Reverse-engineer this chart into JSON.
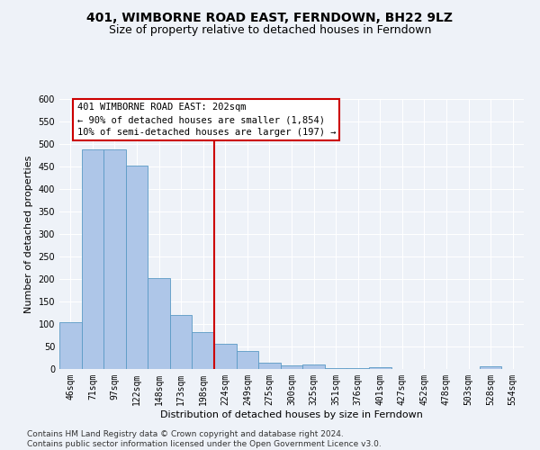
{
  "title": "401, WIMBORNE ROAD EAST, FERNDOWN, BH22 9LZ",
  "subtitle": "Size of property relative to detached houses in Ferndown",
  "xlabel": "Distribution of detached houses by size in Ferndown",
  "ylabel": "Number of detached properties",
  "categories": [
    "46sqm",
    "71sqm",
    "97sqm",
    "122sqm",
    "148sqm",
    "173sqm",
    "198sqm",
    "224sqm",
    "249sqm",
    "275sqm",
    "300sqm",
    "325sqm",
    "351sqm",
    "376sqm",
    "401sqm",
    "427sqm",
    "452sqm",
    "478sqm",
    "503sqm",
    "528sqm",
    "554sqm"
  ],
  "values": [
    105,
    488,
    488,
    453,
    202,
    120,
    83,
    56,
    40,
    15,
    8,
    10,
    2,
    2,
    5,
    0,
    0,
    0,
    0,
    6,
    0
  ],
  "bar_color": "#aec6e8",
  "bar_edge_color": "#5a9ac5",
  "vline_color": "#cc0000",
  "vline_x": 6.5,
  "annotation_text": "401 WIMBORNE ROAD EAST: 202sqm\n← 90% of detached houses are smaller (1,854)\n10% of semi-detached houses are larger (197) →",
  "annotation_box_color": "#cc0000",
  "ylim": [
    0,
    600
  ],
  "yticks": [
    0,
    50,
    100,
    150,
    200,
    250,
    300,
    350,
    400,
    450,
    500,
    550,
    600
  ],
  "footer_line1": "Contains HM Land Registry data © Crown copyright and database right 2024.",
  "footer_line2": "Contains public sector information licensed under the Open Government Licence v3.0.",
  "background_color": "#eef2f8",
  "grid_color": "#ffffff",
  "title_fontsize": 10,
  "subtitle_fontsize": 9,
  "axis_label_fontsize": 8,
  "tick_fontsize": 7,
  "annotation_fontsize": 7.5,
  "footer_fontsize": 6.5
}
